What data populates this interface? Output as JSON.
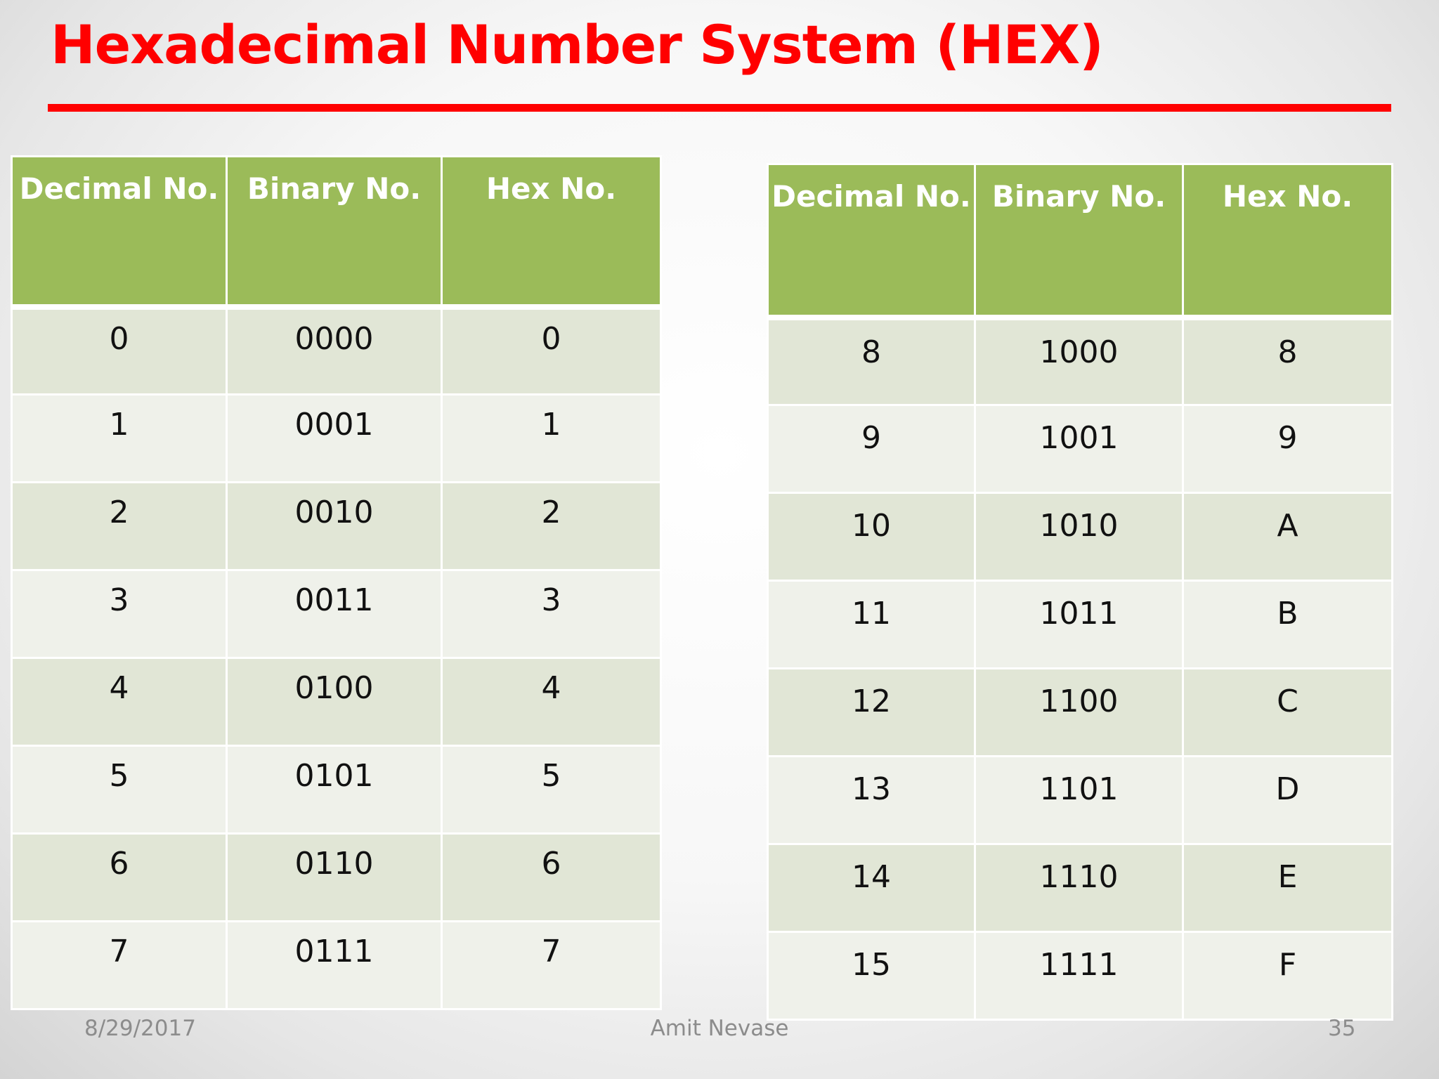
{
  "slide": {
    "title": "Hexadecimal Number System (HEX)",
    "accent_color": "#ff0000",
    "header_color": "#9bbb59"
  },
  "tables": {
    "left": {
      "headers": [
        "Decimal No.",
        "Binary No.",
        "Hex No."
      ],
      "rows": [
        [
          "0",
          "0000",
          "0"
        ],
        [
          "1",
          "0001",
          "1"
        ],
        [
          "2",
          "0010",
          "2"
        ],
        [
          "3",
          "0011",
          "3"
        ],
        [
          "4",
          "0100",
          "4"
        ],
        [
          "5",
          "0101",
          "5"
        ],
        [
          "6",
          "0110",
          "6"
        ],
        [
          "7",
          "0111",
          "7"
        ]
      ]
    },
    "right": {
      "headers": [
        "Decimal No.",
        "Binary No.",
        "Hex No."
      ],
      "rows": [
        [
          "8",
          "1000",
          "8"
        ],
        [
          "9",
          "1001",
          "9"
        ],
        [
          "10",
          "1010",
          "A"
        ],
        [
          "11",
          "1011",
          "B"
        ],
        [
          "12",
          "1100",
          "C"
        ],
        [
          "13",
          "1101",
          "D"
        ],
        [
          "14",
          "1110",
          "E"
        ],
        [
          "15",
          "1111",
          "F"
        ]
      ]
    }
  },
  "footer": {
    "date": "8/29/2017",
    "author": "Amit Nevase",
    "page": "35"
  }
}
